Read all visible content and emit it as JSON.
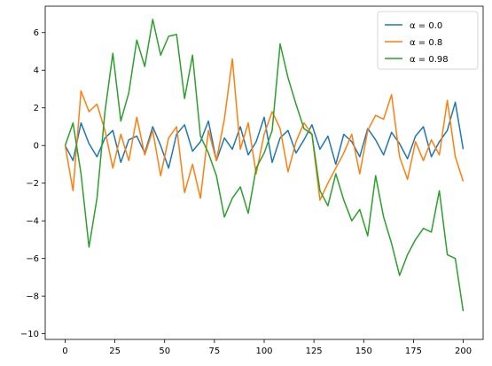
{
  "chart_data": {
    "type": "line",
    "title": "",
    "xlabel": "",
    "ylabel": "",
    "xlim": [
      -10,
      210
    ],
    "ylim": [
      -10.3,
      7.4
    ],
    "x_ticks": [
      0,
      25,
      50,
      75,
      100,
      125,
      150,
      175,
      200
    ],
    "y_ticks": [
      -10,
      -8,
      -6,
      -4,
      -2,
      0,
      2,
      4,
      6
    ],
    "grid": false,
    "legend_position": "top-right",
    "series": [
      {
        "name": "α = 0.0",
        "color": "#1f77b4",
        "x": [
          0,
          4,
          8,
          12,
          16,
          20,
          24,
          28,
          32,
          36,
          40,
          44,
          48,
          52,
          56,
          60,
          64,
          68,
          72,
          76,
          80,
          84,
          88,
          92,
          96,
          100,
          104,
          108,
          112,
          116,
          120,
          124,
          128,
          132,
          136,
          140,
          144,
          148,
          152,
          156,
          160,
          164,
          168,
          172,
          176,
          180,
          184,
          188,
          192,
          196,
          200
        ],
        "values": [
          0.0,
          -0.8,
          1.2,
          0.1,
          -0.6,
          0.4,
          0.8,
          -0.9,
          0.3,
          0.5,
          -0.4,
          1.0,
          0.0,
          -1.2,
          0.6,
          1.1,
          -0.3,
          0.2,
          1.3,
          -0.8,
          0.4,
          -0.2,
          1.0,
          -0.5,
          0.2,
          1.5,
          -0.9,
          0.4,
          0.8,
          -0.4,
          0.3,
          1.1,
          -0.2,
          0.5,
          -1.0,
          0.6,
          0.2,
          -0.6,
          0.9,
          0.3,
          -0.5,
          0.7,
          0.1,
          -0.7,
          0.5,
          1.0,
          -0.6,
          0.2,
          0.8,
          2.3,
          -0.2
        ]
      },
      {
        "name": "α = 0.8",
        "color": "#ff7f0e",
        "x": [
          0,
          4,
          8,
          12,
          16,
          20,
          24,
          28,
          32,
          36,
          40,
          44,
          48,
          52,
          56,
          60,
          64,
          68,
          72,
          76,
          80,
          84,
          88,
          92,
          96,
          100,
          104,
          108,
          112,
          116,
          120,
          124,
          128,
          132,
          136,
          140,
          144,
          148,
          152,
          156,
          160,
          164,
          168,
          172,
          176,
          180,
          184,
          188,
          192,
          196,
          200
        ],
        "values": [
          0.0,
          -2.4,
          2.9,
          1.8,
          2.2,
          0.8,
          -1.2,
          0.6,
          -0.8,
          1.5,
          -0.5,
          0.8,
          -1.6,
          0.4,
          1.0,
          -2.5,
          -1.0,
          -2.8,
          0.8,
          -0.8,
          1.4,
          4.6,
          -0.2,
          1.2,
          -1.5,
          0.6,
          1.8,
          0.9,
          -1.4,
          0.2,
          1.2,
          0.6,
          -2.9,
          -2.0,
          -1.2,
          -0.4,
          0.6,
          -1.5,
          0.8,
          1.6,
          1.4,
          2.7,
          -0.6,
          -1.8,
          0.2,
          -0.8,
          0.3,
          -0.5,
          2.4,
          -0.6,
          -1.9
        ]
      },
      {
        "name": "α = 0.98",
        "color": "#2ca02c",
        "x": [
          0,
          4,
          8,
          12,
          16,
          20,
          24,
          28,
          32,
          36,
          40,
          44,
          48,
          52,
          56,
          60,
          64,
          68,
          72,
          76,
          80,
          84,
          88,
          92,
          96,
          100,
          104,
          108,
          112,
          116,
          120,
          124,
          128,
          132,
          136,
          140,
          144,
          148,
          152,
          156,
          160,
          164,
          168,
          172,
          176,
          180,
          184,
          188,
          192,
          196,
          200
        ],
        "values": [
          0.0,
          1.2,
          -1.5,
          -5.4,
          -2.8,
          1.8,
          4.9,
          1.3,
          2.8,
          5.6,
          4.2,
          6.7,
          4.8,
          5.8,
          5.9,
          2.5,
          4.8,
          0.5,
          -0.4,
          -1.6,
          -3.8,
          -2.8,
          -2.2,
          -3.6,
          -1.2,
          -0.4,
          0.8,
          5.4,
          3.6,
          2.2,
          0.9,
          0.6,
          -2.4,
          -3.2,
          -1.5,
          -2.9,
          -4.0,
          -3.4,
          -4.8,
          -1.6,
          -3.8,
          -5.2,
          -6.9,
          -5.8,
          -5.0,
          -4.4,
          -4.6,
          -2.4,
          -5.8,
          -6.0,
          -8.8
        ]
      }
    ]
  }
}
